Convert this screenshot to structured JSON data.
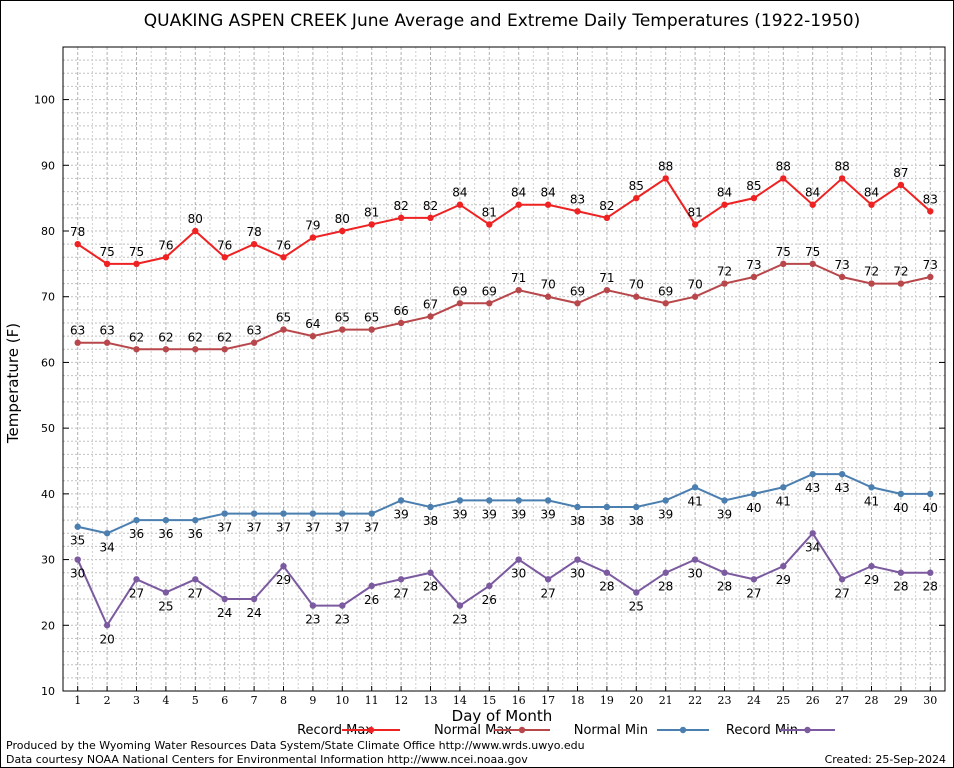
{
  "chart_data": {
    "type": "line",
    "title": "QUAKING ASPEN CREEK June Average and Extreme Daily Temperatures (1922-1950)",
    "xlabel": "Day of Month",
    "ylabel": "Temperature (F)",
    "xlim": [
      0.5,
      30.5
    ],
    "ylim": [
      10,
      108
    ],
    "y_ticks": [
      10,
      20,
      30,
      40,
      50,
      60,
      70,
      80,
      90,
      100
    ],
    "x": [
      1,
      2,
      3,
      4,
      5,
      6,
      7,
      8,
      9,
      10,
      11,
      12,
      13,
      14,
      15,
      16,
      17,
      18,
      19,
      20,
      21,
      22,
      23,
      24,
      25,
      26,
      27,
      28,
      29,
      30
    ],
    "grid": true,
    "legend_position": "bottom",
    "series": [
      {
        "name": "Record Max",
        "color": "#ee2222",
        "label_pos": "above",
        "values": [
          78,
          75,
          75,
          76,
          80,
          76,
          78,
          76,
          79,
          80,
          81,
          82,
          82,
          84,
          81,
          84,
          84,
          83,
          82,
          85,
          88,
          81,
          84,
          85,
          88,
          84,
          88,
          84,
          87,
          83
        ]
      },
      {
        "name": "Normal Max",
        "color": "#b8474b",
        "label_pos": "above",
        "values": [
          63,
          63,
          62,
          62,
          62,
          62,
          63,
          65,
          64,
          65,
          65,
          66,
          67,
          69,
          69,
          71,
          70,
          69,
          71,
          70,
          69,
          70,
          72,
          73,
          75,
          75,
          73,
          72,
          72,
          73
        ]
      },
      {
        "name": "Normal Min",
        "color": "#4a7fb0",
        "label_pos": "below",
        "values": [
          35,
          34,
          36,
          36,
          36,
          37,
          37,
          37,
          37,
          37,
          37,
          39,
          38,
          39,
          39,
          39,
          39,
          38,
          38,
          38,
          39,
          41,
          39,
          40,
          41,
          43,
          43,
          41,
          40,
          40
        ]
      },
      {
        "name": "Record Min",
        "color": "#7b5aa0",
        "label_pos": "below",
        "values": [
          30,
          20,
          27,
          25,
          27,
          24,
          24,
          29,
          23,
          23,
          26,
          27,
          28,
          23,
          26,
          30,
          27,
          30,
          28,
          25,
          28,
          30,
          28,
          27,
          29,
          34,
          27,
          29,
          28,
          28
        ]
      }
    ]
  },
  "footer": {
    "produced_by": "Produced by the Wyoming Water Resources Data System/State Climate Office http://www.wrds.uwyo.edu",
    "courtesy": "Data courtesy NOAA National Centers for Environmental Information http://www.ncei.noaa.gov",
    "created": "Created:  25-Sep-2024"
  }
}
